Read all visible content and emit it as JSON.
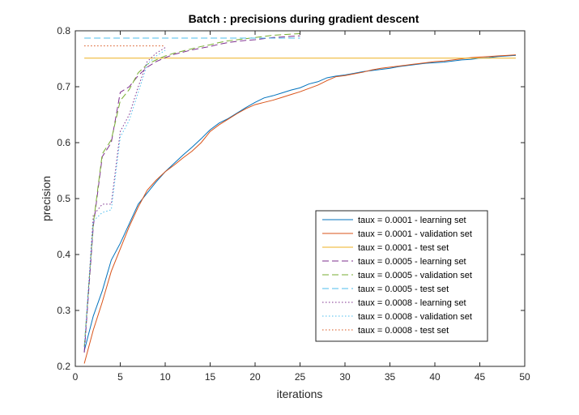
{
  "chart_data": {
    "type": "line",
    "title": "Batch : precisions during gradient descent",
    "xlabel": "iterations",
    "ylabel": "precision",
    "xlim": [
      0,
      50
    ],
    "ylim": [
      0.2,
      0.8
    ],
    "xticks": [
      "0",
      "5",
      "10",
      "15",
      "20",
      "25",
      "30",
      "35",
      "40",
      "45",
      "50"
    ],
    "yticks": [
      "0.2",
      "0.3",
      "0.4",
      "0.5",
      "0.6",
      "0.7",
      "0.8"
    ],
    "grid": false,
    "legend_position": "bottom-right",
    "series": [
      {
        "name": "taux = 0.0001 - learning set",
        "color": "#0072BD",
        "dash": "solid",
        "x": [
          1,
          2,
          3,
          4,
          5,
          6,
          7,
          8,
          9,
          10,
          11,
          12,
          13,
          14,
          15,
          16,
          17,
          18,
          19,
          20,
          21,
          22,
          23,
          24,
          25,
          26,
          27,
          28,
          29,
          30,
          31,
          32,
          33,
          34,
          35,
          36,
          37,
          38,
          39,
          40,
          41,
          42,
          43,
          44,
          45,
          46,
          47,
          48,
          49
        ],
        "y": [
          0.228,
          0.29,
          0.335,
          0.39,
          0.42,
          0.455,
          0.49,
          0.51,
          0.53,
          0.548,
          0.563,
          0.578,
          0.592,
          0.607,
          0.623,
          0.635,
          0.643,
          0.653,
          0.663,
          0.672,
          0.68,
          0.684,
          0.689,
          0.694,
          0.698,
          0.705,
          0.709,
          0.716,
          0.719,
          0.721,
          0.724,
          0.727,
          0.729,
          0.731,
          0.733,
          0.736,
          0.738,
          0.74,
          0.742,
          0.743,
          0.744,
          0.746,
          0.748,
          0.749,
          0.751,
          0.752,
          0.754,
          0.755,
          0.756
        ]
      },
      {
        "name": "taux = 0.0001 - validation set",
        "color": "#D95319",
        "dash": "solid",
        "x": [
          1,
          2,
          3,
          4,
          5,
          6,
          7,
          8,
          9,
          10,
          11,
          12,
          13,
          14,
          15,
          16,
          17,
          18,
          19,
          20,
          21,
          22,
          23,
          24,
          25,
          26,
          27,
          28,
          29,
          30,
          31,
          32,
          33,
          34,
          35,
          36,
          37,
          38,
          39,
          40,
          41,
          42,
          43,
          44,
          45,
          46,
          47,
          48,
          49
        ],
        "y": [
          0.205,
          0.265,
          0.315,
          0.37,
          0.41,
          0.45,
          0.485,
          0.515,
          0.533,
          0.548,
          0.56,
          0.573,
          0.585,
          0.6,
          0.62,
          0.632,
          0.642,
          0.652,
          0.661,
          0.668,
          0.672,
          0.676,
          0.681,
          0.686,
          0.691,
          0.697,
          0.703,
          0.711,
          0.718,
          0.72,
          0.723,
          0.726,
          0.73,
          0.733,
          0.735,
          0.737,
          0.739,
          0.741,
          0.743,
          0.745,
          0.746,
          0.748,
          0.75,
          0.752,
          0.753,
          0.754,
          0.755,
          0.756,
          0.757
        ]
      },
      {
        "name": "taux = 0.0001 - test set",
        "color": "#EDB120",
        "dash": "solid",
        "x": [
          1,
          49
        ],
        "y": [
          0.751,
          0.751
        ]
      },
      {
        "name": "taux = 0.0005 - learning set",
        "color": "#7E2F8E",
        "dash": "dashed",
        "x": [
          1,
          2,
          3,
          4,
          5,
          6,
          7,
          8,
          9,
          10,
          11,
          12,
          13,
          14,
          15,
          16,
          17,
          18,
          19,
          20,
          21,
          22,
          23,
          24,
          25
        ],
        "y": [
          0.225,
          0.45,
          0.575,
          0.6,
          0.69,
          0.7,
          0.72,
          0.735,
          0.745,
          0.752,
          0.758,
          0.762,
          0.766,
          0.769,
          0.772,
          0.776,
          0.779,
          0.781,
          0.783,
          0.784,
          0.786,
          0.788,
          0.789,
          0.79,
          0.791
        ]
      },
      {
        "name": "taux = 0.0005 - validation set",
        "color": "#77AC30",
        "dash": "dashed",
        "x": [
          1,
          2,
          3,
          4,
          5,
          6,
          7,
          8,
          9,
          10,
          11,
          12,
          13,
          14,
          15,
          16,
          17,
          18,
          19,
          20,
          21,
          22,
          23,
          24,
          25
        ],
        "y": [
          0.235,
          0.455,
          0.58,
          0.605,
          0.675,
          0.695,
          0.725,
          0.74,
          0.748,
          0.755,
          0.76,
          0.764,
          0.768,
          0.772,
          0.775,
          0.779,
          0.782,
          0.784,
          0.786,
          0.788,
          0.79,
          0.792,
          0.793,
          0.794,
          0.795
        ]
      },
      {
        "name": "taux = 0.0005 - test set",
        "color": "#4DBEEE",
        "dash": "dashed",
        "x": [
          1,
          25
        ],
        "y": [
          0.787,
          0.787
        ]
      },
      {
        "name": "taux = 0.0008 - learning set",
        "color": "#7E2F8E",
        "dash": "dotted",
        "x": [
          1,
          2,
          3,
          4,
          5,
          6,
          7,
          8,
          9,
          10
        ],
        "y": [
          0.225,
          0.47,
          0.49,
          0.49,
          0.62,
          0.65,
          0.7,
          0.745,
          0.76,
          0.77
        ]
      },
      {
        "name": "taux = 0.0008 - validation set",
        "color": "#4DBEEE",
        "dash": "dotted",
        "x": [
          1,
          2,
          3,
          4,
          5,
          6,
          7,
          8,
          9,
          10
        ],
        "y": [
          0.235,
          0.46,
          0.475,
          0.48,
          0.61,
          0.64,
          0.69,
          0.74,
          0.755,
          0.765
        ]
      },
      {
        "name": "taux = 0.0008 - test set",
        "color": "#D95319",
        "dash": "dotted",
        "x": [
          1,
          10
        ],
        "y": [
          0.773,
          0.773
        ]
      }
    ]
  }
}
